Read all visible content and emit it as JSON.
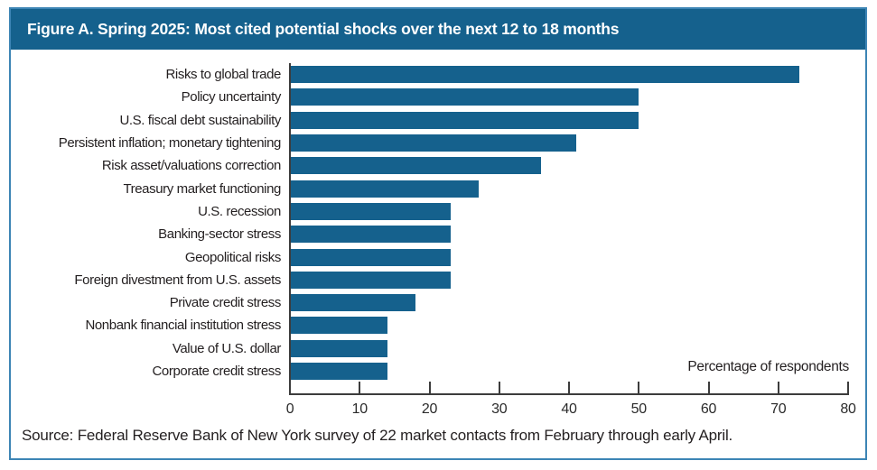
{
  "figure": {
    "title": "Figure A. Spring 2025: Most cited potential shocks over the next 12 to 18 months",
    "source": "Source: Federal Reserve Bank of New York survey of 22 market contacts from February through early April."
  },
  "chart_data": {
    "type": "bar",
    "orientation": "horizontal",
    "title": "Figure A. Spring 2025: Most cited potential shocks over the next 12 to 18 months",
    "categories": [
      "Risks to global trade",
      "Policy uncertainty",
      "U.S. fiscal debt sustainability",
      "Persistent inflation; monetary tightening",
      "Risk asset/valuations correction",
      "Treasury market functioning",
      "U.S. recession",
      "Banking-sector stress",
      "Geopolitical risks",
      "Foreign divestment from U.S. assets",
      "Private credit stress",
      "Nonbank financial institution stress",
      "Value of U.S. dollar",
      "Corporate credit stress"
    ],
    "values": [
      73,
      50,
      50,
      41,
      36,
      27,
      23,
      23,
      23,
      23,
      18,
      14,
      14,
      14
    ],
    "xlabel": "Percentage of respondents",
    "xlim": [
      0,
      80
    ],
    "xticks": [
      0,
      10,
      20,
      30,
      40,
      50,
      60,
      70,
      80
    ],
    "grid": false,
    "legend": false,
    "colors": {
      "bar": "#15618d",
      "header_bg": "#15618d",
      "header_text": "#ffffff",
      "frame_border": "#3d85b5",
      "axis": "#3c3c3c"
    }
  }
}
